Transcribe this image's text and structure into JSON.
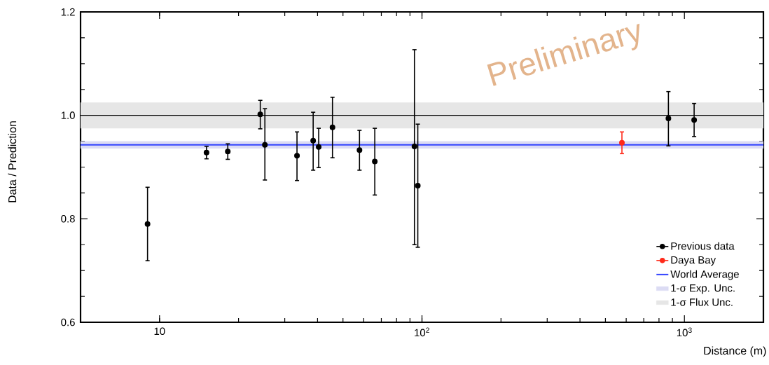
{
  "chart_data": {
    "type": "scatter",
    "xlabel": "Distance (m)",
    "ylabel": "Data / Prediction",
    "log": "x",
    "grid": false,
    "marker": "circle",
    "legend": "bottom right",
    "xlim": [
      5,
      2000
    ],
    "ylim": [
      0.6,
      1.2
    ],
    "xticks": [
      10,
      {
        "value": 100,
        "label": "10$^{2}$"
      },
      {
        "value": 1000,
        "label": "10$^{3}$"
      }
    ],
    "yticks": [
      0.6,
      0.8,
      {
        "value": 1.0,
        "label": "1.0"
      },
      1.2
    ],
    "series": [
      {
        "name": "Previous data",
        "color": "#000000",
        "x": [
          9.0,
          15.1,
          18.2,
          24.2,
          25.2,
          33.4,
          38.5,
          40.4,
          45.6,
          57.8,
          66.1,
          93.6,
          96.4,
          869,
          1089
        ],
        "values": [
          0.79,
          0.928,
          0.93,
          1.002,
          0.943,
          0.922,
          0.951,
          0.939,
          0.977,
          0.933,
          0.911,
          0.94,
          0.864,
          0.994,
          0.991
        ],
        "errors": [
          [
            0.719,
            0.861
          ],
          [
            0.916,
            0.94
          ],
          [
            0.915,
            0.945
          ],
          [
            0.974,
            1.029
          ],
          [
            0.875,
            1.013
          ],
          [
            0.874,
            0.968
          ],
          [
            0.894,
            1.006
          ],
          [
            0.899,
            0.975
          ],
          [
            0.918,
            1.035
          ],
          [
            0.894,
            0.971
          ],
          [
            0.846,
            0.975
          ],
          [
            0.75,
            1.127
          ],
          [
            0.745,
            0.983
          ],
          [
            0.941,
            1.046
          ],
          [
            0.959,
            1.023
          ]
        ]
      },
      {
        "name": "Daya Bay",
        "color": "#ff2a1a",
        "x": [
          578
        ],
        "values": [
          0.947
        ],
        "errors": [
          [
            0.926,
            0.968
          ]
        ]
      }
    ],
    "ref_lines": [
      {
        "axis": "y",
        "value": 1.0,
        "color": "#000000"
      },
      {
        "axis": "y",
        "value": 0.943,
        "label": "World Average",
        "color": "#3344ff"
      }
    ],
    "bands": [
      {
        "axis": "y",
        "from": 0.936,
        "to": 0.95,
        "label": "1-σ Exp. Unc.",
        "color": "#dcdcf4"
      },
      {
        "axis": "y",
        "from": 0.975,
        "to": 1.025,
        "label": "1-σ Flux Unc.",
        "color": "#e6e6e6"
      }
    ],
    "annotations": [
      "Preliminary"
    ]
  }
}
